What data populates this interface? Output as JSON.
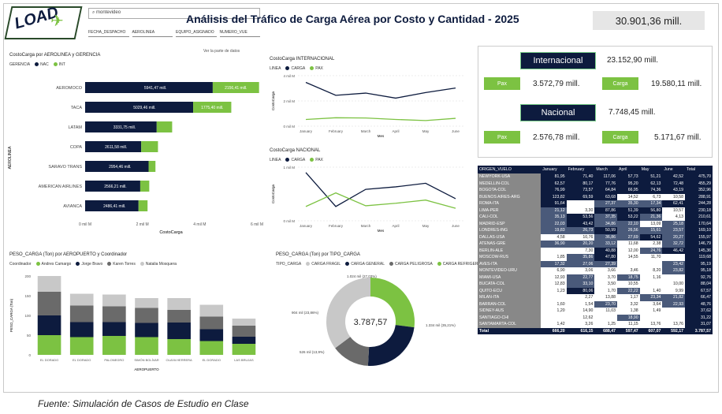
{
  "header": {
    "logo_text": "LOAD",
    "title": "Análisis del Tráfico de Carga Aérea por Costo y Cantidad - 2025",
    "total_kpi": "30.901,36 mill.",
    "search_value": "montevideo",
    "slicers": [
      "FECHA_DESPACHO",
      "AEROLINEA",
      "EQUIPO_ASIGNADO",
      "NUMERO_VUE"
    ]
  },
  "airline_chart": {
    "title": "CostoCarga por AEROLINEA y GERENCIA",
    "legend_label": "GERENCIA",
    "legend_items": [
      "NAC",
      "INT"
    ],
    "ylabel": "AEROLINEA",
    "xlabel": "CostoCarga",
    "x_ticks": [
      "0 mil M",
      "2 mil M",
      "4 mil M",
      "6 mil M"
    ],
    "corner_note": "Ver la parte de datos"
  },
  "intl_chart": {
    "title": "CostoCarga INTERNACIONAL",
    "legend_label": "LINEA",
    "legend_items": [
      "CARGA",
      "PAX"
    ],
    "ylabel": "CostoCarga",
    "xlabel": "Mes",
    "y_ticks": [
      "4 mil M",
      "2 mil M",
      "0 mil M"
    ]
  },
  "nac_chart": {
    "title": "CostoCarga NACIONAL",
    "legend_label": "LINEA",
    "legend_items": [
      "CARGA",
      "PAX"
    ],
    "ylabel": "CostoCarga",
    "xlabel": "Mes",
    "y_ticks": [
      "1 mil M",
      "0 mil M"
    ]
  },
  "airport_chart": {
    "title": "PESO_CARGA (Ton) por AEROPUERTO y Coordinador",
    "legend_label": "Coordinador",
    "legend_items": [
      "Andres Camargo",
      "Jorge Bravo",
      "Karen Torres",
      "Natalia Mosquera"
    ],
    "ylabel": "PESO_CARGA (Ton)",
    "xlabel": "AEROPUERTO",
    "y_ticks": [
      "200",
      "150",
      "100",
      "50",
      "0"
    ]
  },
  "donut_chart": {
    "title": "PESO_CARGA (Ton) por TIPO_CARGA",
    "legend_label": "TIPO_CARGA",
    "legend_items": [
      "CARGA FRAGIL",
      "CARGA GENERAL",
      "CARGA PELIGROSA",
      "CARGA REFRIGERADA"
    ],
    "center_value": "3.787,57",
    "labels": [
      "1.334 mil (35,21%)",
      "904 mil (23,86%)",
      "526 mil (13,9%)",
      "1.024 mil (27,03%)"
    ]
  },
  "kpis": {
    "internacional_label": "Internacional",
    "internacional_value": "23.152,90 mill.",
    "int_pax_label": "Pax",
    "int_pax_value": "3.572,79 mill.",
    "int_carga_label": "Carga",
    "int_carga_value": "19.580,11 mill.",
    "nacional_label": "Nacional",
    "nacional_value": "7.748,45 mill.",
    "nac_pax_label": "Pax",
    "nac_pax_value": "2.576,78 mill.",
    "nac_carga_label": "Carga",
    "nac_carga_value": "5.171,67 mill."
  },
  "matrix": {
    "headers": [
      "ORIGEN_VUELO",
      "January",
      "February",
      "March",
      "April",
      "May",
      "June",
      "Total"
    ],
    "rows": [
      [
        "NEWYORK-USA",
        "81,95",
        "71,40",
        "117,06",
        "57,73",
        "51,21",
        "42,52",
        "475,70"
      ],
      [
        "MEDELLIN-COL",
        "62,57",
        "80,17",
        "77,76",
        "95,20",
        "62,13",
        "72,48",
        "455,29"
      ],
      [
        "BOGOTA-COL",
        "76,99",
        "73,57",
        "64,84",
        "66,95",
        "74,36",
        "43,19",
        "352,96"
      ],
      [
        "BUENOS AIRES-ARG",
        "123,82",
        "69,59",
        "63,68",
        "14,52",
        "6,73",
        "10,58",
        "288,91"
      ],
      [
        "ROMA-ITA",
        "91,64",
        "",
        "27,37",
        "35,30",
        "17,34",
        "62,41",
        "244,28"
      ],
      [
        "LIMA-PER",
        "21,12",
        "3,30",
        "87,86",
        "51,39",
        "56,80",
        "10,57",
        "230,18"
      ],
      [
        "CALI-COL",
        "35,13",
        "53,56",
        "37,35",
        "53,22",
        "21,36",
        "4,13",
        "210,61"
      ],
      [
        "MADRID-ESP",
        "22,03",
        "43,42",
        "34,86",
        "22,10",
        "13,09",
        "25,18",
        "170,64"
      ],
      [
        "LONDRES-ING",
        "19,83",
        "26,73",
        "50,99",
        "26,56",
        "15,61",
        "23,57",
        "169,10"
      ],
      [
        "DALLAS-USA",
        "4,58",
        "10,76",
        "36,86",
        "27,69",
        "54,62",
        "20,27",
        "155,97"
      ],
      [
        "ATENAS-GRE",
        "36,90",
        "20,20",
        "33,12",
        "11,68",
        "2,38",
        "32,72",
        "146,79"
      ],
      [
        "BERLIN-ALE",
        "",
        "7,30",
        "40,88",
        "12,00",
        "24,76",
        "46,42",
        "145,36"
      ],
      [
        "MOSCOW-RUS",
        "1,85",
        "35,86",
        "47,80",
        "14,55",
        "11,70",
        "",
        "119,68"
      ],
      [
        "AVES-ITA",
        "17,32",
        "27,06",
        "27,39",
        "",
        "",
        "23,42",
        "95,19"
      ],
      [
        "MONTEVIDEO-URU",
        "6,90",
        "3,06",
        "3,66",
        "3,46",
        "8,20",
        "23,82",
        "95,18"
      ],
      [
        "MIAMI-USA",
        "12,93",
        "22,77",
        "3,70",
        "18,75",
        "1,16",
        "",
        "92,76"
      ],
      [
        "BUCATA-COL",
        "12,83",
        "33,10",
        "3,50",
        "10,55",
        "",
        "10,00",
        "88,04"
      ],
      [
        "QUITO-ECU",
        "1,23",
        "80,06",
        "1,70",
        "22,22",
        "1,40",
        "9,99",
        "67,57"
      ],
      [
        "MILAN-ITA",
        "",
        "2,27",
        "13,88",
        "1,17",
        "23,34",
        "21,82",
        "66,47"
      ],
      [
        "BARRAN-COL",
        "1,60",
        "1,54",
        "23,70",
        "3,32",
        "3,64",
        "22,93",
        "48,76"
      ],
      [
        "SIDNEY-AUS",
        "1,20",
        "14,90",
        "11,03",
        "1,38",
        "1,49",
        "",
        "37,62"
      ],
      [
        "SANTIAGO-CHI",
        "",
        "12,62",
        "",
        "18,90",
        "",
        "",
        "31,22"
      ],
      [
        "SANTAMARTA-COL",
        "1,42",
        "3,26",
        "1,25",
        "11,15",
        "13,76",
        "13,76",
        "31,07"
      ]
    ],
    "total_row": [
      "Total",
      "666,20",
      "616,15",
      "688,47",
      "597,47",
      "607,07",
      "592,17",
      "3.787,57"
    ]
  },
  "chart_data": [
    {
      "type": "bar",
      "title": "CostoCarga por AEROLINEA y GERENCIA",
      "categories": [
        "AEROMOCO",
        "TACA",
        "LATAM",
        "COPA",
        "SARAVO TRANS",
        "AMERICAN AIRLINES",
        "AVIANCA"
      ],
      "series": [
        {
          "name": "INT",
          "values": [
            5941.47,
            5029.46,
            3331.75,
            2611.58,
            2954.46,
            2566.21,
            2486.41
          ],
          "labels": [
            "5941,47 mill.",
            "5029,46 mill.",
            "3331,75 mill.",
            "2611,58 mill.",
            "2954,46 mill.",
            "2566,21 mill.",
            "2486,41 mill."
          ]
        },
        {
          "name": "NAC",
          "values": [
            2156.41,
            1775.4,
            720,
            780,
            320,
            420,
            420
          ],
          "labels": [
            "2156,41 mill.",
            "1775,40 mill.",
            "",
            "",
            "",
            "",
            ""
          ]
        }
      ],
      "xlim": [
        0,
        8000
      ]
    },
    {
      "type": "line",
      "title": "CostoCarga INTERNACIONAL",
      "categories": [
        "January",
        "February",
        "March",
        "April",
        "May",
        "June"
      ],
      "series": [
        {
          "name": "CARGA",
          "values": [
            3900,
            2750,
            2950,
            2500,
            3000,
            3400
          ]
        },
        {
          "name": "PAX",
          "values": [
            600,
            750,
            730,
            600,
            500,
            700
          ]
        }
      ],
      "ylim": [
        0,
        4500
      ]
    },
    {
      "type": "line",
      "title": "CostoCarga NACIONAL",
      "categories": [
        "January",
        "February",
        "March",
        "April",
        "May",
        "June"
      ],
      "series": [
        {
          "name": "CARGA",
          "values": [
            1350,
            400,
            880,
            950,
            1050,
            620
          ]
        },
        {
          "name": "PAX",
          "values": [
            400,
            780,
            420,
            490,
            580,
            350
          ]
        }
      ],
      "ylim": [
        0,
        1500
      ]
    },
    {
      "type": "bar",
      "title": "PESO_CARGA (Ton) por AEROPUERTO y Coordinador",
      "categories": [
        "EL DORADO",
        "EL DORADO",
        "PALONEGRO",
        "SIMÓN BOLÍVAR",
        "OLAYA HERRERA",
        "EL DORADO",
        "LAS BRUJAS"
      ],
      "series": [
        {
          "name": "Andres Camargo",
          "values": [
            50,
            45,
            48,
            45,
            40,
            35,
            28
          ]
        },
        {
          "name": "Jorge Bravo",
          "values": [
            50,
            38,
            35,
            36,
            42,
            30,
            18
          ]
        },
        {
          "name": "Karen Torres",
          "values": [
            60,
            42,
            40,
            38,
            32,
            32,
            28
          ]
        },
        {
          "name": "Natalia Mosquera",
          "values": [
            40,
            30,
            30,
            25,
            30,
            30,
            18
          ]
        }
      ],
      "ylim": [
        0,
        200
      ]
    },
    {
      "type": "pie",
      "title": "PESO_CARGA (Ton) por TIPO_CARGA",
      "categories": [
        "CARGA FRAGIL",
        "CARGA GENERAL",
        "CARGA PELIGROSA",
        "CARGA REFRIGERADA"
      ],
      "values": [
        1334,
        904,
        526,
        1024
      ]
    }
  ],
  "caption": "Fuente: Simulación de Casos de Estudio en Clase",
  "colors": {
    "navy": "#0d1b3e",
    "green": "#7cc242",
    "gray1": "#4a4a4a",
    "gray2": "#8c8c8c",
    "gray3": "#c8c8c8"
  }
}
